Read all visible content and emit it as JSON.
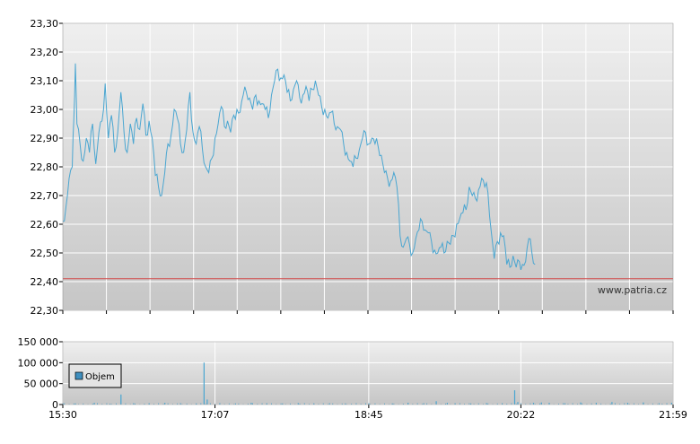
{
  "colors": {
    "price_line": "#4aa6d1",
    "reference_line": "#d24a4a",
    "volume_bar": "#4aa6d1",
    "legend_box": "#3f8fbf",
    "plot_bg_top": "#efefef",
    "plot_bg_bottom": "#c6c6c6",
    "grid": "#ffffff",
    "axis": "#000000"
  },
  "watermark": "www.patria.cz",
  "chart_data": [
    {
      "type": "line",
      "title": "",
      "xlabel": "",
      "ylabel": "",
      "ylim": [
        22.3,
        23.3
      ],
      "yticks": [
        "23,30",
        "23,20",
        "23,10",
        "23,00",
        "22,90",
        "22,80",
        "22,70",
        "22,60",
        "22,50",
        "22,40",
        "22,30"
      ],
      "xlim_minutes": [
        930,
        1319
      ],
      "reference_value": 22.41,
      "grid": true,
      "series": [
        {
          "points": [
            [
              930,
              22.61
            ],
            [
              932,
              22.66
            ],
            [
              934,
              22.76
            ],
            [
              936,
              22.8
            ],
            [
              937,
              22.96
            ],
            [
              938,
              23.16
            ],
            [
              939,
              22.95
            ],
            [
              941,
              22.88
            ],
            [
              943,
              22.82
            ],
            [
              945,
              22.9
            ],
            [
              947,
              22.85
            ],
            [
              949,
              22.95
            ],
            [
              951,
              22.81
            ],
            [
              953,
              22.92
            ],
            [
              955,
              22.96
            ],
            [
              957,
              23.09
            ],
            [
              959,
              22.9
            ],
            [
              961,
              22.98
            ],
            [
              963,
              22.85
            ],
            [
              965,
              22.92
            ],
            [
              967,
              23.06
            ],
            [
              969,
              22.92
            ],
            [
              971,
              22.85
            ],
            [
              973,
              22.95
            ],
            [
              975,
              22.88
            ],
            [
              977,
              22.97
            ],
            [
              979,
              22.93
            ],
            [
              981,
              23.02
            ],
            [
              983,
              22.91
            ],
            [
              985,
              22.96
            ],
            [
              987,
              22.9
            ],
            [
              989,
              22.77
            ],
            [
              991,
              22.73
            ],
            [
              993,
              22.7
            ],
            [
              995,
              22.78
            ],
            [
              997,
              22.88
            ],
            [
              999,
              22.91
            ],
            [
              1001,
              23.0
            ],
            [
              1003,
              22.97
            ],
            [
              1005,
              22.88
            ],
            [
              1007,
              22.85
            ],
            [
              1009,
              22.93
            ],
            [
              1011,
              23.06
            ],
            [
              1013,
              22.92
            ],
            [
              1015,
              22.88
            ],
            [
              1017,
              22.94
            ],
            [
              1019,
              22.86
            ],
            [
              1021,
              22.8
            ],
            [
              1023,
              22.78
            ],
            [
              1025,
              22.83
            ],
            [
              1027,
              22.9
            ],
            [
              1029,
              22.95
            ],
            [
              1031,
              23.01
            ],
            [
              1033,
              22.94
            ],
            [
              1035,
              22.96
            ],
            [
              1037,
              22.92
            ],
            [
              1039,
              22.98
            ],
            [
              1041,
              23.0
            ],
            [
              1043,
              22.99
            ],
            [
              1045,
              23.05
            ],
            [
              1047,
              23.06
            ],
            [
              1049,
              23.04
            ],
            [
              1051,
              23.0
            ],
            [
              1053,
              23.05
            ],
            [
              1055,
              23.03
            ],
            [
              1057,
              23.02
            ],
            [
              1059,
              23.0
            ],
            [
              1061,
              22.97
            ],
            [
              1063,
              23.05
            ],
            [
              1065,
              23.1
            ],
            [
              1067,
              23.14
            ],
            [
              1069,
              23.11
            ],
            [
              1071,
              23.12
            ],
            [
              1073,
              23.06
            ],
            [
              1075,
              23.03
            ],
            [
              1077,
              23.07
            ],
            [
              1079,
              23.1
            ],
            [
              1081,
              23.04
            ],
            [
              1083,
              23.05
            ],
            [
              1085,
              23.08
            ],
            [
              1087,
              23.03
            ],
            [
              1089,
              23.07
            ],
            [
              1091,
              23.1
            ],
            [
              1093,
              23.05
            ],
            [
              1095,
              23.01
            ],
            [
              1097,
              23.0
            ],
            [
              1099,
              22.97
            ],
            [
              1101,
              22.99
            ],
            [
              1103,
              22.95
            ],
            [
              1105,
              22.94
            ],
            [
              1107,
              22.93
            ],
            [
              1109,
              22.88
            ],
            [
              1111,
              22.85
            ],
            [
              1113,
              22.82
            ],
            [
              1115,
              22.8
            ],
            [
              1117,
              22.83
            ],
            [
              1119,
              22.86
            ],
            [
              1121,
              22.9
            ],
            [
              1123,
              22.92
            ],
            [
              1125,
              22.88
            ],
            [
              1127,
              22.9
            ],
            [
              1129,
              22.88
            ],
            [
              1131,
              22.87
            ],
            [
              1133,
              22.84
            ],
            [
              1135,
              22.78
            ],
            [
              1137,
              22.76
            ],
            [
              1139,
              22.75
            ],
            [
              1141,
              22.78
            ],
            [
              1143,
              22.73
            ],
            [
              1145,
              22.56
            ],
            [
              1147,
              22.52
            ],
            [
              1149,
              22.55
            ],
            [
              1151,
              22.53
            ],
            [
              1153,
              22.5
            ],
            [
              1155,
              22.55
            ],
            [
              1157,
              22.58
            ],
            [
              1159,
              22.61
            ],
            [
              1161,
              22.58
            ],
            [
              1163,
              22.57
            ],
            [
              1165,
              22.54
            ],
            [
              1167,
              22.51
            ],
            [
              1169,
              22.5
            ],
            [
              1171,
              22.52
            ],
            [
              1173,
              22.5
            ],
            [
              1175,
              22.54
            ],
            [
              1177,
              22.53
            ],
            [
              1179,
              22.56
            ],
            [
              1181,
              22.6
            ],
            [
              1183,
              22.62
            ],
            [
              1185,
              22.64
            ],
            [
              1187,
              22.65
            ],
            [
              1189,
              22.73
            ],
            [
              1191,
              22.7
            ],
            [
              1193,
              22.69
            ],
            [
              1195,
              22.72
            ],
            [
              1197,
              22.76
            ],
            [
              1199,
              22.73
            ],
            [
              1201,
              22.71
            ],
            [
              1203,
              22.58
            ],
            [
              1205,
              22.48
            ],
            [
              1207,
              22.54
            ],
            [
              1209,
              22.57
            ],
            [
              1211,
              22.56
            ],
            [
              1213,
              22.46
            ],
            [
              1215,
              22.45
            ],
            [
              1217,
              22.49
            ],
            [
              1219,
              22.45
            ],
            [
              1221,
              22.47
            ],
            [
              1223,
              22.46
            ],
            [
              1225,
              22.47
            ],
            [
              1227,
              22.55
            ],
            [
              1229,
              22.5
            ],
            [
              1231,
              22.46
            ]
          ]
        }
      ]
    },
    {
      "type": "bar",
      "title": "",
      "ylim": [
        0,
        150000
      ],
      "yticks": [
        "150 000",
        "100 000",
        "50 000",
        "0"
      ],
      "xticks": [
        "15:30",
        "17:07",
        "18:45",
        "20:22",
        "21:59"
      ],
      "xtick_minutes": [
        930,
        1027,
        1125,
        1222,
        1319
      ],
      "grid": true,
      "legend": {
        "placement": "left",
        "label": "Objem"
      },
      "series": [
        {
          "name": "Objem",
          "values": [
            [
              930,
              3000
            ],
            [
              938,
              2500
            ],
            [
              950,
              4000
            ],
            [
              960,
              2000
            ],
            [
              967,
              24000
            ],
            [
              975,
              3000
            ],
            [
              985,
              2500
            ],
            [
              995,
              4000
            ],
            [
              1005,
              3000
            ],
            [
              1015,
              2500
            ],
            [
              1020,
              100000
            ],
            [
              1022,
              12000
            ],
            [
              1030,
              3000
            ],
            [
              1040,
              2500
            ],
            [
              1050,
              4000
            ],
            [
              1060,
              3000
            ],
            [
              1070,
              2500
            ],
            [
              1080,
              3500
            ],
            [
              1090,
              2000
            ],
            [
              1100,
              3000
            ],
            [
              1110,
              2500
            ],
            [
              1125,
              3000
            ],
            [
              1140,
              2500
            ],
            [
              1150,
              4000
            ],
            [
              1160,
              3000
            ],
            [
              1168,
              8000
            ],
            [
              1175,
              4000
            ],
            [
              1180,
              3000
            ],
            [
              1190,
              2500
            ],
            [
              1200,
              3500
            ],
            [
              1210,
              3000
            ],
            [
              1218,
              34000
            ],
            [
              1220,
              6000
            ],
            [
              1230,
              4000
            ],
            [
              1235,
              5000
            ],
            [
              1240,
              4000
            ],
            [
              1250,
              3000
            ],
            [
              1260,
              5000
            ],
            [
              1270,
              4000
            ],
            [
              1280,
              6000
            ],
            [
              1290,
              4000
            ],
            [
              1300,
              5000
            ],
            [
              1310,
              3000
            ],
            [
              1318,
              4000
            ]
          ]
        }
      ]
    }
  ]
}
